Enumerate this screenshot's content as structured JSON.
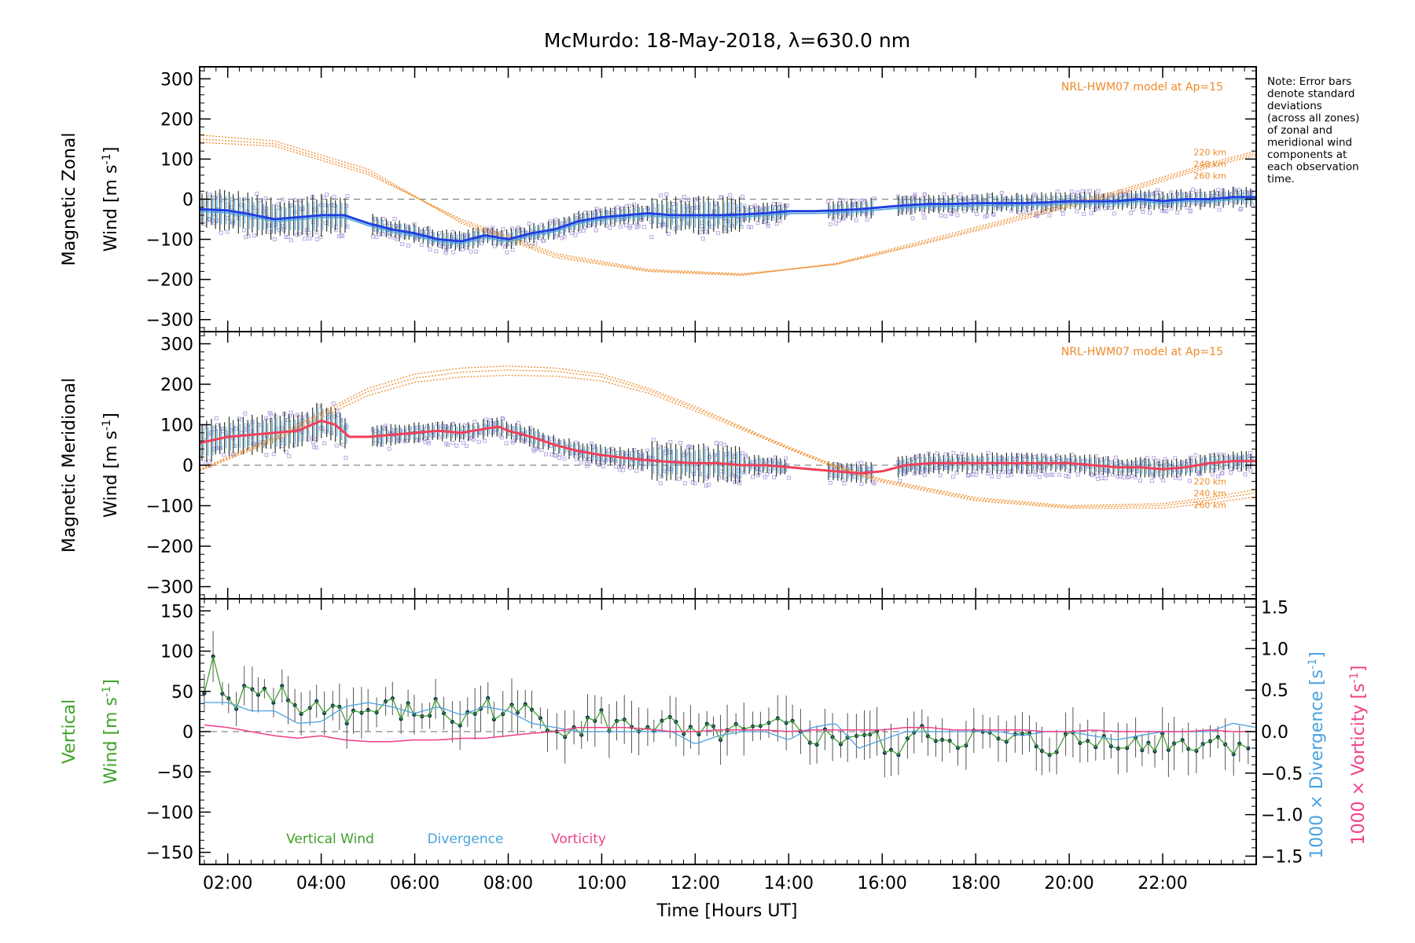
{
  "title": "McMurdo: 18-May-2018, λ=630.0 nm",
  "note": [
    "Note: Error bars",
    "denote standard",
    "deviations",
    "(across all zones)",
    "of zonal and",
    "meridional wind",
    "components at",
    "each observation",
    "time."
  ],
  "colors": {
    "zonal": "#1f3fe0",
    "zonal_light": "#4aa3df",
    "meridional": "#f0405a",
    "scatter": "#b7a9e0",
    "model": "#f08a28",
    "vertical": "#3fa12a",
    "divergence": "#4aa3df",
    "vorticity": "#f0408a",
    "points": "#113355",
    "errbar": "#555555"
  },
  "xaxis": {
    "label": "Time [Hours UT]",
    "min": 1.4,
    "max": 24.0,
    "ticks": [
      2,
      4,
      6,
      8,
      10,
      12,
      14,
      16,
      18,
      20,
      22
    ],
    "tick_labels": [
      "02:00",
      "04:00",
      "06:00",
      "08:00",
      "10:00",
      "12:00",
      "14:00",
      "16:00",
      "18:00",
      "20:00",
      "22:00"
    ]
  },
  "chart_data": [
    {
      "type": "line",
      "panel": "zonal",
      "ylabel_line1": "Magnetic Zonal",
      "ylabel_line2": "Wind [m s",
      "ylabel_sup": "-1",
      "ylabel_end": "]",
      "ylim": [
        -330,
        330
      ],
      "yticks": [
        300,
        200,
        100,
        0,
        -100,
        -200,
        -300
      ],
      "ytick_labels": [
        "300",
        "200",
        "100",
        "0",
        "−100",
        "−200",
        "−300"
      ],
      "model_label": "NRL-HWM07 model at Ap=15",
      "model_heights": [
        "220 km",
        "240 km",
        "260 km"
      ],
      "model_curves": [
        {
          "name": "220 km",
          "x": [
            1.4,
            3,
            5,
            7,
            9,
            11,
            13,
            15,
            17,
            19,
            21,
            23,
            24
          ],
          "y": [
            160,
            145,
            75,
            -60,
            -145,
            -180,
            -190,
            -160,
            -100,
            -40,
            20,
            90,
            120
          ]
        },
        {
          "name": "240 km",
          "x": [
            1.4,
            3,
            5,
            7,
            9,
            11,
            13,
            15,
            17,
            19,
            21,
            23,
            24
          ],
          "y": [
            150,
            138,
            68,
            -55,
            -140,
            -178,
            -188,
            -162,
            -105,
            -45,
            15,
            85,
            115
          ]
        },
        {
          "name": "260 km",
          "x": [
            1.4,
            3,
            5,
            7,
            9,
            11,
            13,
            15,
            17,
            19,
            21,
            23,
            24
          ],
          "y": [
            142,
            132,
            62,
            -50,
            -135,
            -175,
            -186,
            -163,
            -108,
            -50,
            10,
            80,
            110
          ]
        }
      ],
      "series": [
        {
          "name": "Zonal wind (mean)",
          "x": [
            1.4,
            2,
            2.5,
            3,
            3.5,
            4,
            4.5,
            5,
            5.5,
            6,
            6.5,
            7,
            7.5,
            8,
            8.5,
            9,
            9.5,
            10,
            10.5,
            11,
            11.5,
            12,
            12.5,
            13,
            13.5,
            14,
            14.5,
            15,
            15.5,
            16,
            16.5,
            17,
            17.5,
            18,
            18.5,
            19,
            19.5,
            20,
            20.5,
            21,
            21.5,
            22,
            22.5,
            23,
            23.5,
            24
          ],
          "y": [
            -25,
            -28,
            -38,
            -50,
            -45,
            -40,
            -40,
            -60,
            -75,
            -85,
            -100,
            -105,
            -90,
            -100,
            -85,
            -75,
            -55,
            -45,
            -40,
            -35,
            -40,
            -40,
            -40,
            -38,
            -35,
            -30,
            -30,
            -28,
            -25,
            -20,
            -15,
            -12,
            -12,
            -10,
            -10,
            -10,
            -8,
            -5,
            -5,
            -5,
            0,
            -5,
            0,
            0,
            5,
            5
          ]
        }
      ]
    },
    {
      "type": "line",
      "panel": "meridional",
      "ylabel_line1": "Magnetic Meridional",
      "ylabel_line2": "Wind [m s",
      "ylabel_sup": "-1",
      "ylabel_end": "]",
      "ylim": [
        -330,
        330
      ],
      "yticks": [
        300,
        200,
        100,
        0,
        -100,
        -200,
        -300
      ],
      "ytick_labels": [
        "300",
        "200",
        "100",
        "0",
        "−100",
        "−200",
        "−300"
      ],
      "model_label": "NRL-HWM07 model at Ap=15",
      "model_heights": [
        "220 km",
        "240 km",
        "260 km"
      ],
      "model_curves": [
        {
          "name": "220 km",
          "x": [
            1.4,
            3,
            4,
            5,
            6,
            7,
            8,
            9,
            10,
            11,
            12,
            13,
            14,
            15,
            16,
            18,
            20,
            22,
            23,
            24
          ],
          "y": [
            -10,
            70,
            130,
            190,
            225,
            240,
            245,
            240,
            225,
            190,
            145,
            95,
            45,
            0,
            -35,
            -80,
            -100,
            -95,
            -80,
            -60
          ]
        },
        {
          "name": "240 km",
          "x": [
            1.4,
            3,
            4,
            5,
            6,
            7,
            8,
            9,
            10,
            11,
            12,
            13,
            14,
            15,
            16,
            18,
            20,
            22,
            23,
            24
          ],
          "y": [
            -12,
            65,
            125,
            182,
            215,
            230,
            235,
            232,
            218,
            185,
            140,
            92,
            42,
            -3,
            -38,
            -84,
            -103,
            -100,
            -86,
            -68
          ]
        },
        {
          "name": "260 km",
          "x": [
            1.4,
            3,
            4,
            5,
            6,
            7,
            8,
            9,
            10,
            11,
            12,
            13,
            14,
            15,
            16,
            18,
            20,
            22,
            23,
            24
          ],
          "y": [
            -14,
            60,
            118,
            172,
            205,
            218,
            222,
            220,
            208,
            178,
            134,
            88,
            40,
            -6,
            -42,
            -88,
            -106,
            -106,
            -94,
            -78
          ]
        }
      ],
      "series": [
        {
          "name": "Meridional wind (mean)",
          "x": [
            1.4,
            2,
            2.5,
            3,
            3.5,
            3.8,
            4,
            4.3,
            4.6,
            5,
            5.5,
            6,
            6.5,
            7,
            7.5,
            7.8,
            8,
            8.5,
            9,
            9.5,
            10,
            10.5,
            11,
            11.5,
            12,
            12.5,
            13,
            13.5,
            14,
            14.5,
            15,
            15.5,
            16,
            16.5,
            17,
            17.5,
            18,
            18.5,
            19,
            19.5,
            20,
            20.5,
            21,
            21.5,
            22,
            22.5,
            23,
            23.5,
            24
          ],
          "y": [
            55,
            70,
            75,
            80,
            85,
            100,
            110,
            100,
            70,
            70,
            75,
            80,
            85,
            80,
            90,
            95,
            85,
            70,
            50,
            35,
            25,
            18,
            12,
            8,
            5,
            5,
            0,
            0,
            -5,
            -10,
            -15,
            -20,
            -15,
            0,
            5,
            5,
            5,
            5,
            5,
            5,
            5,
            0,
            -5,
            -5,
            -10,
            -5,
            5,
            10,
            10
          ]
        }
      ]
    },
    {
      "type": "line",
      "panel": "vertical",
      "ylabel_line1": "Vertical",
      "ylabel_line2": "Wind [m s",
      "ylabel_sup": "-1",
      "ylabel_end": "]",
      "ylim": [
        -165,
        165
      ],
      "yticks": [
        150,
        100,
        50,
        0,
        -50,
        -100,
        -150
      ],
      "ytick_labels": [
        "150",
        "100",
        "50",
        "0",
        "−50",
        "−100",
        "−150"
      ],
      "y2lim": [
        -1.6,
        1.6
      ],
      "y2ticks": [
        1.5,
        1.0,
        0.5,
        0.0,
        -0.5,
        -1.0,
        -1.5
      ],
      "y2tick_labels": [
        "1.5",
        "1.0",
        "0.5",
        "0.0",
        "−0.5",
        "−1.0",
        "−1.5"
      ],
      "y2label_div": "1000 × Divergence [s",
      "y2label_vort": "1000 × Vorticity [s",
      "y2label_sup": "-1",
      "y2label_end": "]",
      "legend": [
        "Vertical Wind",
        "Divergence",
        "Vorticity"
      ],
      "series": [
        {
          "name": "Vertical Wind",
          "x": [
            1.5,
            1.7,
            1.9,
            2.0,
            2.2,
            2.4,
            2.6,
            2.8,
            3.0,
            3.2,
            3.4,
            3.6,
            3.8,
            4.0,
            4.3,
            4.6,
            5.0,
            5.5,
            6.0,
            6.5,
            7.0,
            7.5,
            8.0,
            8.5,
            9.0,
            9.5,
            10.0,
            10.5,
            11.0,
            11.5,
            12.0,
            12.5,
            13.0,
            13.5,
            14.0,
            14.5,
            15.0,
            15.5,
            16.0,
            16.3,
            16.5,
            16.8,
            17.0,
            17.5,
            18.0,
            18.5,
            19.0,
            19.5,
            20.0,
            20.5,
            21.0,
            21.5,
            22.0,
            22.5,
            23.0,
            23.5,
            24.0
          ],
          "y": [
            40,
            90,
            45,
            30,
            25,
            55,
            30,
            50,
            40,
            45,
            35,
            30,
            25,
            35,
            30,
            20,
            25,
            30,
            20,
            30,
            10,
            35,
            20,
            25,
            10,
            5,
            15,
            5,
            10,
            5,
            -10,
            0,
            -5,
            0,
            5,
            -5,
            -10,
            0,
            -15,
            -45,
            5,
            -10,
            0,
            -10,
            -5,
            -15,
            -10,
            -20,
            -10,
            -15,
            -5,
            -20,
            -10,
            -15,
            -10,
            -15,
            -10
          ]
        },
        {
          "name": "Divergence",
          "x": [
            1.5,
            2.0,
            2.5,
            3.0,
            3.5,
            4.0,
            4.5,
            5.0,
            5.5,
            6.0,
            6.5,
            7.0,
            7.5,
            8.0,
            8.5,
            9.0,
            9.5,
            10.0,
            10.5,
            11.0,
            11.5,
            12.0,
            12.5,
            13.0,
            13.5,
            14.0,
            14.5,
            15.0,
            15.5,
            16.0,
            16.5,
            17.0,
            17.5,
            18.0,
            18.5,
            19.0,
            19.5,
            20.0,
            20.5,
            21.0,
            21.5,
            22.0,
            22.5,
            23.0,
            23.5,
            24.0
          ],
          "y": [
            0.35,
            0.35,
            0.25,
            0.25,
            0.1,
            0.12,
            0.3,
            0.35,
            0.3,
            0.22,
            0.3,
            0.2,
            0.3,
            0.25,
            0.1,
            0.05,
            0.0,
            0.0,
            0.0,
            0.0,
            0.0,
            -0.15,
            -0.05,
            0.0,
            0.0,
            -0.1,
            0.05,
            0.1,
            -0.2,
            -0.1,
            0.0,
            0.0,
            0.0,
            0.0,
            0.0,
            -0.05,
            0.0,
            0.0,
            -0.05,
            -0.1,
            -0.05,
            0.0,
            0.0,
            0.0,
            0.1,
            0.05
          ]
        },
        {
          "name": "Vorticity",
          "x": [
            1.5,
            2.0,
            2.5,
            3.0,
            3.5,
            4.0,
            4.5,
            5.0,
            5.5,
            6.0,
            6.5,
            7.0,
            7.5,
            8.0,
            8.5,
            9.0,
            9.5,
            10.0,
            10.5,
            11.0,
            11.5,
            12.0,
            12.5,
            13.0,
            13.5,
            14.0,
            14.5,
            15.0,
            15.5,
            16.0,
            16.5,
            17.0,
            17.5,
            18.0,
            18.5,
            19.0,
            19.5,
            20.0,
            20.5,
            21.0,
            21.5,
            22.0,
            22.5,
            23.0,
            23.5,
            24.0
          ],
          "y": [
            0.08,
            0.05,
            0.0,
            -0.05,
            -0.08,
            -0.05,
            -0.1,
            -0.12,
            -0.12,
            -0.1,
            -0.1,
            -0.08,
            -0.08,
            -0.05,
            -0.02,
            0.0,
            0.05,
            0.05,
            0.05,
            0.03,
            0.0,
            0.0,
            0.02,
            0.02,
            0.02,
            0.0,
            0.02,
            0.02,
            0.02,
            0.02,
            0.05,
            0.05,
            0.02,
            0.02,
            0.02,
            0.02,
            0.0,
            0.0,
            0.02,
            0.0,
            0.0,
            0.0,
            0.0,
            0.02,
            0.0,
            0.0
          ]
        }
      ]
    }
  ]
}
